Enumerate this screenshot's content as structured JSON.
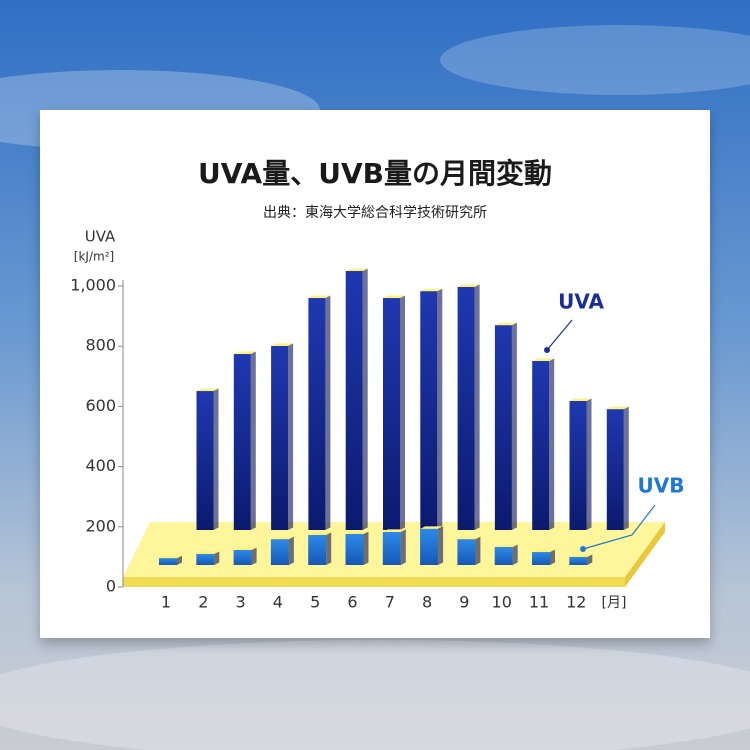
{
  "chart_data": {
    "type": "bar",
    "title": "UVA量、UVB量の月間変動",
    "subtitle": "出典：東海大学総合科学技術研究所",
    "y_label": "UVA",
    "y_unit": "[kJ/m²]",
    "x_unit": "[月]",
    "categories": [
      "1",
      "2",
      "3",
      "4",
      "5",
      "6",
      "7",
      "8",
      "9",
      "10",
      "11",
      "12"
    ],
    "series": [
      {
        "name": "UVA",
        "color": "#1a2e9a",
        "values": [
          651,
          774,
          801,
          960,
          1050,
          960,
          983,
          997,
          870,
          751,
          618,
          591
        ]
      },
      {
        "name": "UVB",
        "color": "#1f78d6",
        "values": [
          23,
          37,
          50,
          86,
          100,
          103,
          110,
          120,
          86,
          60,
          43,
          27
        ]
      }
    ],
    "ylim": [
      0,
      1000
    ],
    "yticks": [
      0,
      200,
      400,
      600,
      800,
      {
        "value": 1000,
        "label": "1,000"
      }
    ],
    "grid": false
  }
}
